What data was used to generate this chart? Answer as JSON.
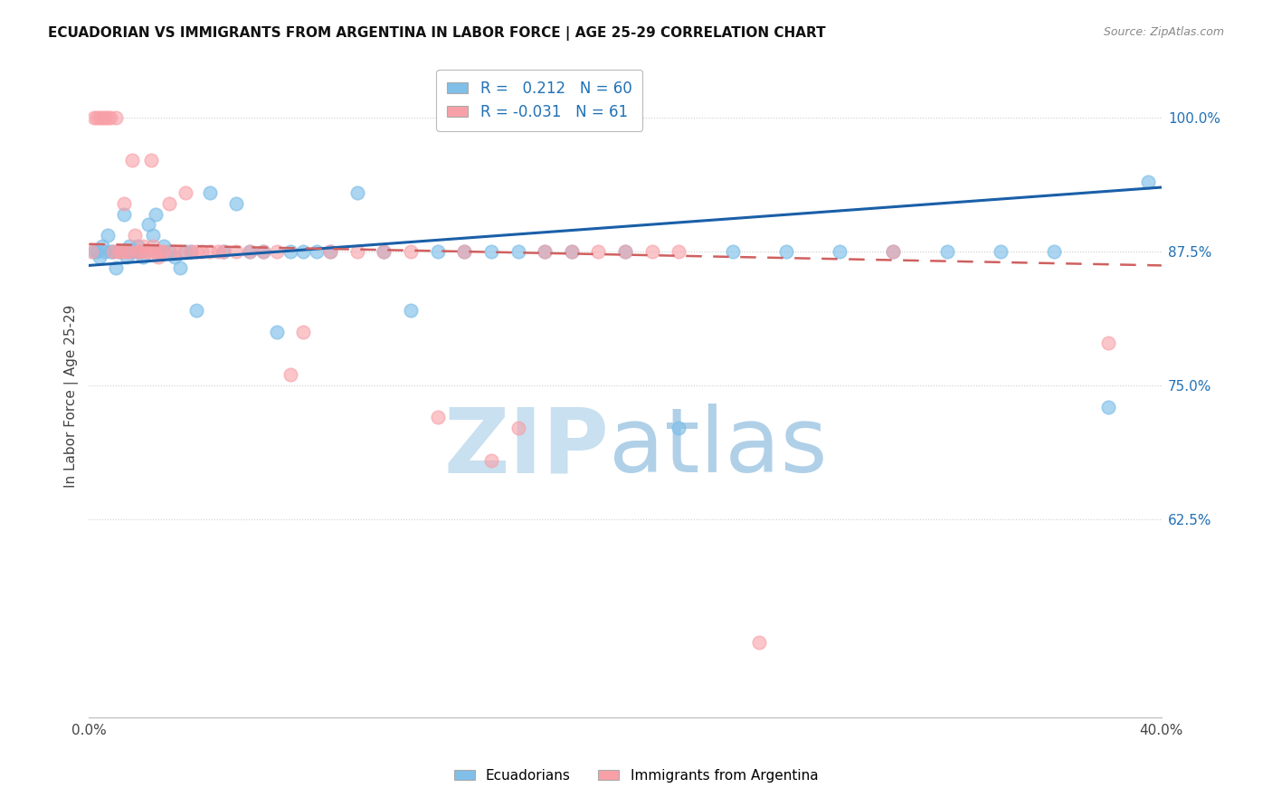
{
  "title": "ECUADORIAN VS IMMIGRANTS FROM ARGENTINA IN LABOR FORCE | AGE 25-29 CORRELATION CHART",
  "source": "Source: ZipAtlas.com",
  "ylabel": "In Labor Force | Age 25-29",
  "xlim": [
    0.0,
    0.4
  ],
  "ylim": [
    0.44,
    1.04
  ],
  "xticks": [
    0.0,
    0.05,
    0.1,
    0.15,
    0.2,
    0.25,
    0.3,
    0.35,
    0.4
  ],
  "ytick_positions": [
    0.625,
    0.75,
    0.875,
    1.0
  ],
  "ytick_labels": [
    "62.5%",
    "75.0%",
    "87.5%",
    "100.0%"
  ],
  "legend_r_blue": "0.212",
  "legend_n_blue": "60",
  "legend_r_pink": "-0.031",
  "legend_n_pink": "61",
  "legend_label_blue": "Ecuadorians",
  "legend_label_pink": "Immigrants from Argentina",
  "blue_color": "#7fbfe8",
  "pink_color": "#f8a0a8",
  "trend_blue_color": "#1a5fa8",
  "trend_pink_color": "#d06060",
  "background_color": "#ffffff",
  "watermark_color": "#cce4f5",
  "blue_scatter_x": [
    0.002,
    0.003,
    0.004,
    0.005,
    0.006,
    0.007,
    0.008,
    0.009,
    0.01,
    0.011,
    0.012,
    0.013,
    0.014,
    0.015,
    0.016,
    0.017,
    0.018,
    0.019,
    0.02,
    0.022,
    0.024,
    0.025,
    0.026,
    0.028,
    0.03,
    0.032,
    0.034,
    0.036,
    0.038,
    0.04,
    0.045,
    0.05,
    0.055,
    0.06,
    0.065,
    0.07,
    0.075,
    0.08,
    0.085,
    0.09,
    0.1,
    0.11,
    0.12,
    0.13,
    0.14,
    0.15,
    0.16,
    0.17,
    0.18,
    0.2,
    0.22,
    0.24,
    0.26,
    0.28,
    0.3,
    0.32,
    0.34,
    0.36,
    0.38,
    0.395
  ],
  "blue_scatter_y": [
    0.875,
    0.875,
    0.87,
    0.88,
    0.875,
    0.89,
    0.875,
    0.875,
    0.86,
    0.875,
    0.875,
    0.91,
    0.87,
    0.88,
    0.875,
    0.875,
    0.88,
    0.875,
    0.87,
    0.9,
    0.89,
    0.91,
    0.875,
    0.88,
    0.875,
    0.87,
    0.86,
    0.875,
    0.875,
    0.82,
    0.93,
    0.875,
    0.92,
    0.875,
    0.875,
    0.8,
    0.875,
    0.875,
    0.875,
    0.875,
    0.93,
    0.875,
    0.82,
    0.875,
    0.875,
    0.875,
    0.875,
    0.875,
    0.875,
    0.875,
    0.71,
    0.875,
    0.875,
    0.875,
    0.875,
    0.875,
    0.875,
    0.875,
    0.73,
    0.94
  ],
  "pink_scatter_x": [
    0.001,
    0.002,
    0.003,
    0.004,
    0.005,
    0.006,
    0.007,
    0.008,
    0.009,
    0.01,
    0.011,
    0.012,
    0.013,
    0.014,
    0.015,
    0.016,
    0.017,
    0.018,
    0.019,
    0.02,
    0.021,
    0.022,
    0.023,
    0.024,
    0.025,
    0.026,
    0.027,
    0.028,
    0.03,
    0.032,
    0.034,
    0.036,
    0.038,
    0.04,
    0.042,
    0.045,
    0.048,
    0.05,
    0.055,
    0.06,
    0.065,
    0.07,
    0.075,
    0.08,
    0.09,
    0.1,
    0.11,
    0.12,
    0.13,
    0.14,
    0.15,
    0.16,
    0.17,
    0.18,
    0.19,
    0.2,
    0.21,
    0.22,
    0.25,
    0.3,
    0.38
  ],
  "pink_scatter_y": [
    0.875,
    1.0,
    1.0,
    1.0,
    1.0,
    1.0,
    1.0,
    1.0,
    0.875,
    1.0,
    0.875,
    0.875,
    0.92,
    0.875,
    0.875,
    0.96,
    0.89,
    0.875,
    0.875,
    0.88,
    0.875,
    0.875,
    0.96,
    0.88,
    0.875,
    0.87,
    0.875,
    0.875,
    0.92,
    0.875,
    0.875,
    0.93,
    0.875,
    0.875,
    0.875,
    0.875,
    0.875,
    0.875,
    0.875,
    0.875,
    0.875,
    0.875,
    0.76,
    0.8,
    0.875,
    0.875,
    0.875,
    0.875,
    0.72,
    0.875,
    0.68,
    0.71,
    0.875,
    0.875,
    0.875,
    0.875,
    0.875,
    0.875,
    0.51,
    0.875,
    0.79
  ]
}
